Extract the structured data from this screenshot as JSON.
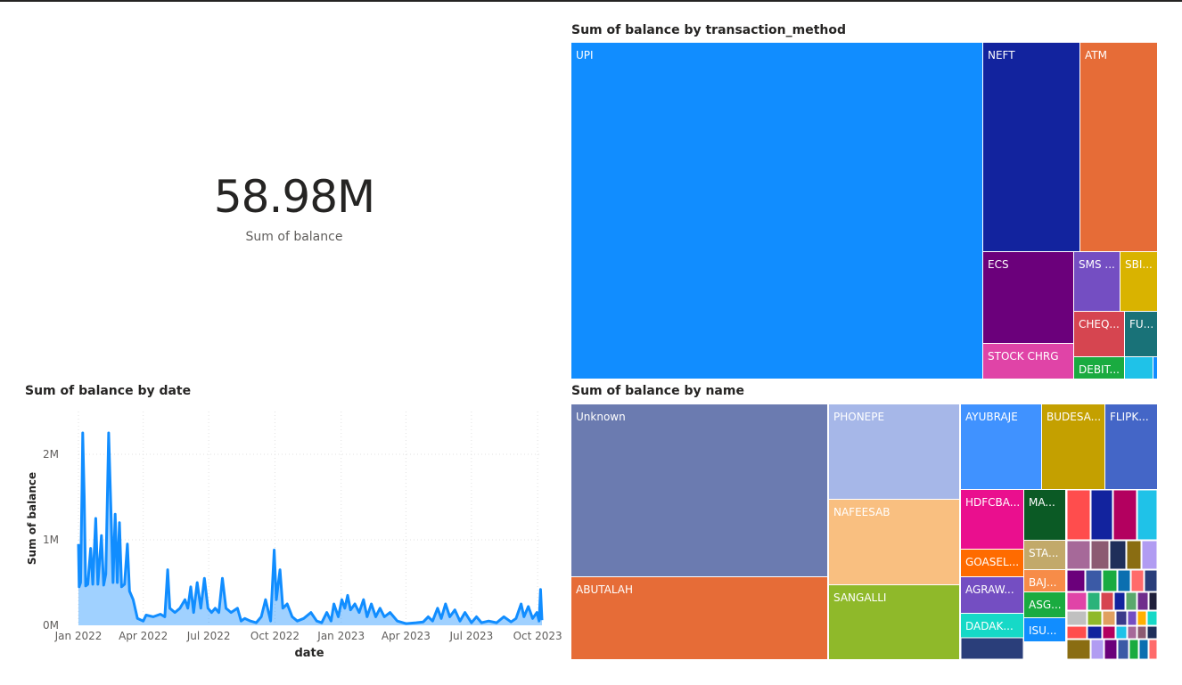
{
  "kpi": {
    "value": "58.98M",
    "label": "Sum of balance"
  },
  "charts": {
    "method_title": "Sum of balance by transaction_method",
    "date_title": "Sum of balance by date",
    "name_title": "Sum of balance by name"
  },
  "chart_data": [
    {
      "type": "treemap",
      "title": "Sum of balance by transaction_method",
      "labels": [
        "UPI",
        "NEFT",
        "ATM",
        "ECS",
        "SMS ...",
        "SBI...",
        "CHEQ...",
        "FU...",
        "STOCK CHRG",
        "DEBIT..."
      ],
      "colors": [
        "#118dff",
        "#12239e",
        "#e66c37",
        "#6b007b",
        "#744ec2",
        "#d9b300",
        "#d64550",
        "#197278",
        "#e044a7",
        "#1aab40"
      ]
    },
    {
      "type": "area",
      "title": "Sum of balance by date",
      "xlabel": "date",
      "ylabel": "Sum of balance",
      "x_ticks": [
        "Jan 2022",
        "Apr 2022",
        "Jul 2022",
        "Oct 2022",
        "Jan 2023",
        "Apr 2023",
        "Jul 2023",
        "Oct 2023"
      ],
      "y_ticks": [
        "0M",
        "1M",
        "2M"
      ],
      "ylim": [
        0,
        2500000
      ],
      "x_range": [
        "2022-01-01",
        "2023-10-07"
      ],
      "color": "#118dff",
      "points": [
        [
          "2022-01-01",
          950000
        ],
        [
          "2022-01-02",
          450000
        ],
        [
          "2022-01-04",
          500000
        ],
        [
          "2022-01-06",
          1600000
        ],
        [
          "2022-01-07",
          2250000
        ],
        [
          "2022-01-09",
          1500000
        ],
        [
          "2022-01-11",
          460000
        ],
        [
          "2022-01-14",
          480000
        ],
        [
          "2022-01-18",
          900000
        ],
        [
          "2022-01-21",
          480000
        ],
        [
          "2022-01-25",
          1250000
        ],
        [
          "2022-01-28",
          480000
        ],
        [
          "2022-02-02",
          1050000
        ],
        [
          "2022-02-05",
          470000
        ],
        [
          "2022-02-08",
          600000
        ],
        [
          "2022-02-12",
          2250000
        ],
        [
          "2022-02-15",
          1400000
        ],
        [
          "2022-02-18",
          500000
        ],
        [
          "2022-02-21",
          1300000
        ],
        [
          "2022-02-24",
          500000
        ],
        [
          "2022-02-27",
          1200000
        ],
        [
          "2022-03-02",
          450000
        ],
        [
          "2022-03-06",
          480000
        ],
        [
          "2022-03-10",
          950000
        ],
        [
          "2022-03-13",
          400000
        ],
        [
          "2022-03-18",
          300000
        ],
        [
          "2022-03-24",
          80000
        ],
        [
          "2022-04-01",
          50000
        ],
        [
          "2022-04-05",
          120000
        ],
        [
          "2022-04-15",
          100000
        ],
        [
          "2022-04-25",
          130000
        ],
        [
          "2022-05-01",
          100000
        ],
        [
          "2022-05-05",
          650000
        ],
        [
          "2022-05-08",
          200000
        ],
        [
          "2022-05-15",
          150000
        ],
        [
          "2022-05-22",
          200000
        ],
        [
          "2022-05-29",
          300000
        ],
        [
          "2022-06-02",
          200000
        ],
        [
          "2022-06-06",
          450000
        ],
        [
          "2022-06-10",
          150000
        ],
        [
          "2022-06-15",
          500000
        ],
        [
          "2022-06-20",
          200000
        ],
        [
          "2022-06-25",
          550000
        ],
        [
          "2022-06-30",
          200000
        ],
        [
          "2022-07-05",
          150000
        ],
        [
          "2022-07-10",
          200000
        ],
        [
          "2022-07-15",
          150000
        ],
        [
          "2022-07-20",
          550000
        ],
        [
          "2022-07-25",
          200000
        ],
        [
          "2022-08-01",
          150000
        ],
        [
          "2022-08-10",
          200000
        ],
        [
          "2022-08-15",
          50000
        ],
        [
          "2022-08-20",
          80000
        ],
        [
          "2022-08-28",
          50000
        ],
        [
          "2022-09-05",
          30000
        ],
        [
          "2022-09-12",
          100000
        ],
        [
          "2022-09-18",
          300000
        ],
        [
          "2022-09-25",
          50000
        ],
        [
          "2022-09-30",
          880000
        ],
        [
          "2022-10-03",
          300000
        ],
        [
          "2022-10-08",
          650000
        ],
        [
          "2022-10-12",
          200000
        ],
        [
          "2022-10-18",
          250000
        ],
        [
          "2022-10-25",
          100000
        ],
        [
          "2022-11-01",
          50000
        ],
        [
          "2022-11-10",
          80000
        ],
        [
          "2022-11-20",
          150000
        ],
        [
          "2022-11-28",
          50000
        ],
        [
          "2022-12-05",
          30000
        ],
        [
          "2022-12-12",
          150000
        ],
        [
          "2022-12-18",
          50000
        ],
        [
          "2022-12-22",
          250000
        ],
        [
          "2022-12-28",
          100000
        ],
        [
          "2023-01-02",
          300000
        ],
        [
          "2023-01-06",
          200000
        ],
        [
          "2023-01-10",
          350000
        ],
        [
          "2023-01-14",
          180000
        ],
        [
          "2023-01-20",
          250000
        ],
        [
          "2023-01-26",
          150000
        ],
        [
          "2023-02-01",
          300000
        ],
        [
          "2023-02-06",
          100000
        ],
        [
          "2023-02-12",
          250000
        ],
        [
          "2023-02-18",
          100000
        ],
        [
          "2023-02-24",
          200000
        ],
        [
          "2023-03-02",
          100000
        ],
        [
          "2023-03-10",
          150000
        ],
        [
          "2023-03-20",
          50000
        ],
        [
          "2023-04-01",
          20000
        ],
        [
          "2023-04-15",
          30000
        ],
        [
          "2023-04-25",
          40000
        ],
        [
          "2023-05-02",
          100000
        ],
        [
          "2023-05-08",
          50000
        ],
        [
          "2023-05-15",
          200000
        ],
        [
          "2023-05-20",
          80000
        ],
        [
          "2023-05-26",
          250000
        ],
        [
          "2023-06-01",
          100000
        ],
        [
          "2023-06-08",
          180000
        ],
        [
          "2023-06-15",
          50000
        ],
        [
          "2023-06-22",
          150000
        ],
        [
          "2023-07-01",
          30000
        ],
        [
          "2023-07-08",
          100000
        ],
        [
          "2023-07-15",
          30000
        ],
        [
          "2023-07-25",
          50000
        ],
        [
          "2023-08-05",
          30000
        ],
        [
          "2023-08-15",
          100000
        ],
        [
          "2023-08-25",
          40000
        ],
        [
          "2023-09-01",
          80000
        ],
        [
          "2023-09-08",
          250000
        ],
        [
          "2023-09-12",
          100000
        ],
        [
          "2023-09-18",
          220000
        ],
        [
          "2023-09-24",
          80000
        ],
        [
          "2023-09-30",
          150000
        ],
        [
          "2023-10-03",
          50000
        ],
        [
          "2023-10-05",
          420000
        ],
        [
          "2023-10-07",
          60000
        ]
      ]
    },
    {
      "type": "treemap",
      "title": "Sum of balance by name",
      "labels": [
        "Unknown",
        "ABUTALAH",
        "PHONEPE",
        "NAFEESAB",
        "SANGALLI",
        "AYUBRAJE",
        "BUDESA...",
        "FLIPK...",
        "HDFCBA...",
        "MA...",
        "GOASEL...",
        "STA...",
        "BAJ...",
        "AGRAW...",
        "ASG...",
        "DADAK...",
        "ISU..."
      ],
      "colors": [
        "#6b7bb0",
        "#e66c37",
        "#a6b7e8",
        "#f9bf80",
        "#8fb92a",
        "#4092ff",
        "#c4a000",
        "#4466c7",
        "#ea0f8e",
        "#0b5a25",
        "#ff6b00",
        "#c2a96a",
        "#f78c48",
        "#744ec2",
        "#1aab40",
        "#16d9c7",
        "#118dff"
      ]
    }
  ]
}
